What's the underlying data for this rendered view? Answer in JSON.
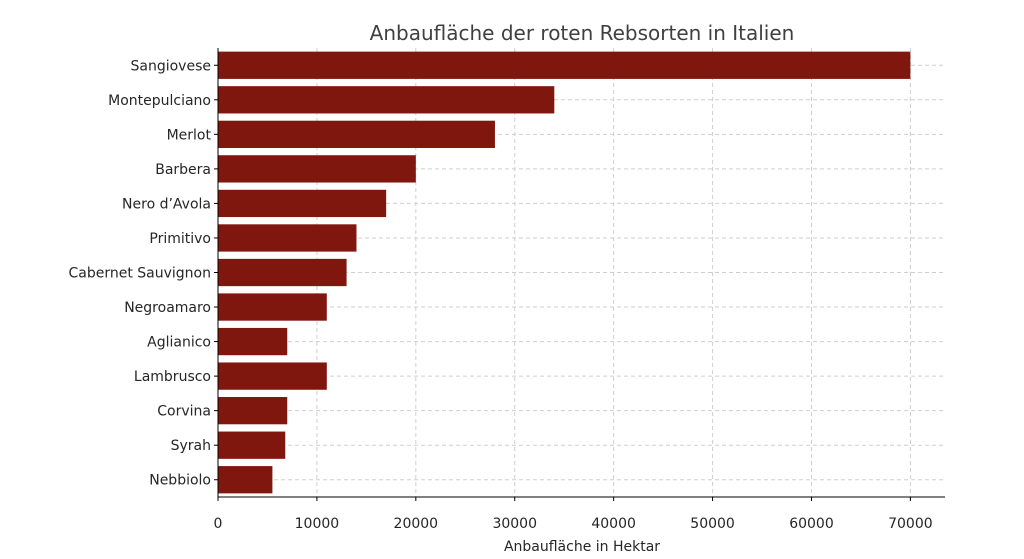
{
  "chart_data": {
    "type": "bar",
    "orientation": "horizontal",
    "title": "Anbaufläche der roten Rebsorten in Italien",
    "xlabel": "Anbaufläche in Hektar",
    "ylabel": "",
    "categories": [
      "Sangiovese",
      "Montepulciano",
      "Merlot",
      "Barbera",
      "Nero d’Avola",
      "Primitivo",
      "Cabernet Sauvignon",
      "Negroamaro",
      "Aglianico",
      "Lambrusco",
      "Corvina",
      "Syrah",
      "Nebbiolo"
    ],
    "values": [
      70000,
      34000,
      28000,
      20000,
      17000,
      14000,
      13000,
      11000,
      7000,
      11000,
      7000,
      6800,
      5500
    ],
    "xlim": [
      0,
      73500
    ],
    "xticks": [
      0,
      10000,
      20000,
      30000,
      40000,
      50000,
      60000,
      70000
    ],
    "grid": true,
    "bar_color": "#7f170e"
  }
}
